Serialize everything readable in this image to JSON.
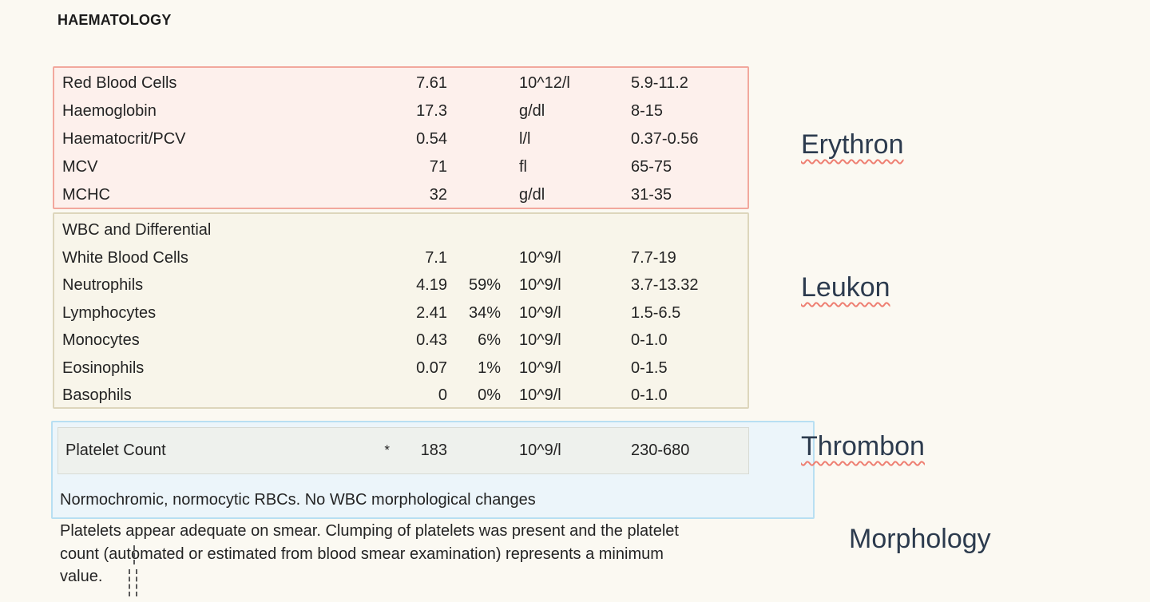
{
  "header": {
    "title": "HAEMATOLOGY"
  },
  "colors": {
    "page_background": "#fbf9f2",
    "erythron_box_border": "#f2a89d",
    "erythron_box_background": "#fdf0ec",
    "leukon_box_border": "#ddd6bc",
    "leukon_box_background": "#f8f5ea",
    "thrombon_box_border": "#b8dff2",
    "thrombon_box_background": "#ecf5fa",
    "platelet_inner_background": "#eef1ed",
    "concept_label_color": "#2c3b4e",
    "spellcheck_squiggle_color": "#ee7f72"
  },
  "erythron": {
    "rows": [
      {
        "name": "Red Blood Cells",
        "value": "7.61",
        "pct": "",
        "unit": "10^12/l",
        "range": "5.9-11.2"
      },
      {
        "name": "Haemoglobin",
        "value": "17.3",
        "pct": "",
        "unit": "g/dl",
        "range": "8-15"
      },
      {
        "name": "Haematocrit/PCV",
        "value": "0.54",
        "pct": "",
        "unit": "l/l",
        "range": "0.37-0.56"
      },
      {
        "name": "MCV",
        "value": "71",
        "pct": "",
        "unit": "fl",
        "range": "65-75"
      },
      {
        "name": "MCHC",
        "value": "32",
        "pct": "",
        "unit": "g/dl",
        "range": "31-35"
      }
    ]
  },
  "leukon": {
    "group_header": "WBC and Differential",
    "rows": [
      {
        "name": "White Blood Cells",
        "value": "7.1",
        "pct": "",
        "unit": "10^9/l",
        "range": "7.7-19"
      },
      {
        "name": "Neutrophils",
        "value": "4.19",
        "pct": "59%",
        "unit": "10^9/l",
        "range": "3.7-13.32"
      },
      {
        "name": "Lymphocytes",
        "value": "2.41",
        "pct": "34%",
        "unit": "10^9/l",
        "range": "1.5-6.5"
      },
      {
        "name": "Monocytes",
        "value": "0.43",
        "pct": "6%",
        "unit": "10^9/l",
        "range": "0-1.0"
      },
      {
        "name": "Eosinophils",
        "value": "0.07",
        "pct": "1%",
        "unit": "10^9/l",
        "range": "0-1.5"
      },
      {
        "name": "Basophils",
        "value": "0",
        "pct": "0%",
        "unit": "10^9/l",
        "range": "0-1.0"
      }
    ]
  },
  "thrombon": {
    "row": {
      "name": "Platelet Count",
      "flag": "*",
      "value": "183",
      "unit": "10^9/l",
      "range": "230-680"
    },
    "smear_note": "Normochromic, normocytic RBCs. No WBC morphological changes"
  },
  "morphology": {
    "lines": [
      "Platelets appear adequate on smear. Clumping of platelets was present and the platelet",
      "count (automated or estimated from blood smear examination) represents a minimum",
      "value."
    ]
  },
  "labels": {
    "erythron": "Erythron",
    "leukon": "Leukon",
    "thrombon": "Thrombon",
    "morphology": "Morphology"
  }
}
